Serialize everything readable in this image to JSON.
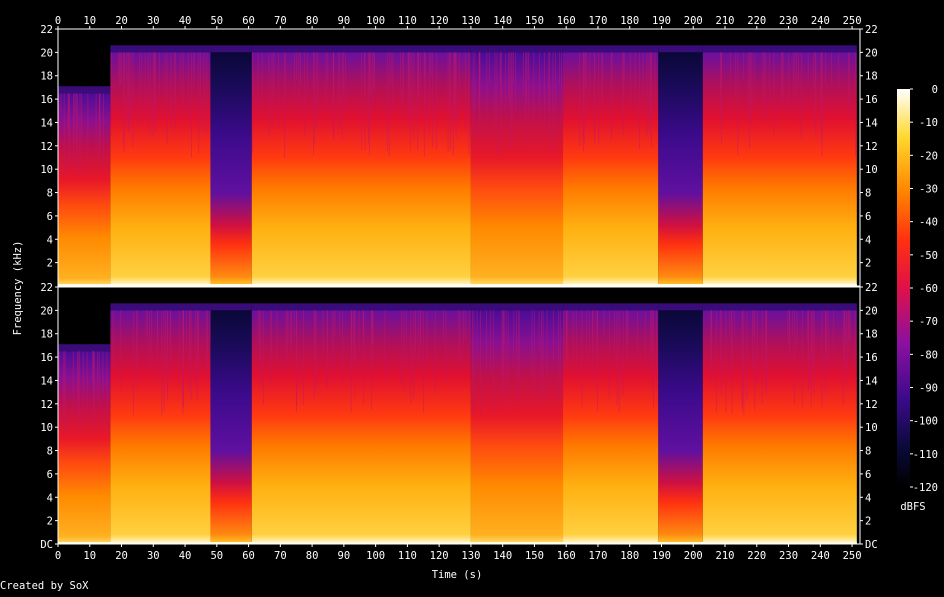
{
  "credit": "Created by SoX",
  "chart_data": {
    "type": "heatmap",
    "title": "",
    "xlabel": "Time (s)",
    "ylabel": "Frequency (kHz)",
    "x_ticks": [
      0,
      10,
      20,
      30,
      40,
      50,
      60,
      70,
      80,
      90,
      100,
      110,
      120,
      130,
      140,
      150,
      160,
      170,
      180,
      190,
      200,
      210,
      220,
      230,
      240,
      250
    ],
    "xlim": [
      0,
      252.5
    ],
    "channels": [
      {
        "y_ticks": [
          "2",
          "4",
          "6",
          "8",
          "10",
          "12",
          "14",
          "16",
          "18",
          "20",
          "22"
        ]
      },
      {
        "y_ticks": [
          "DC",
          "2",
          "4",
          "6",
          "8",
          "10",
          "12",
          "14",
          "16",
          "18",
          "20",
          "22"
        ]
      }
    ],
    "y_tick_values": [
      0,
      2,
      4,
      6,
      8,
      10,
      12,
      14,
      16,
      18,
      20,
      22
    ],
    "ylim": [
      0,
      22
    ],
    "colorbar": {
      "label": "dBFS",
      "ticks": [
        0,
        -10,
        -20,
        -30,
        -40,
        -50,
        -60,
        -70,
        -80,
        -90,
        -100,
        -110,
        -120
      ],
      "range": [
        -120,
        0
      ]
    },
    "segments": [
      {
        "start": 0,
        "end": 16.5,
        "cutoff_khz": 16.5,
        "level": "medium"
      },
      {
        "start": 16.5,
        "end": 48,
        "cutoff_khz": 20,
        "level": "loud"
      },
      {
        "start": 48,
        "end": 61,
        "cutoff_khz": 20,
        "level": "quiet"
      },
      {
        "start": 61,
        "end": 130,
        "cutoff_khz": 20,
        "level": "loud"
      },
      {
        "start": 130,
        "end": 159,
        "cutoff_khz": 20,
        "level": "medium"
      },
      {
        "start": 159,
        "end": 189,
        "cutoff_khz": 20,
        "level": "loud"
      },
      {
        "start": 189,
        "end": 203,
        "cutoff_khz": 20,
        "level": "quiet"
      },
      {
        "start": 203,
        "end": 251.5,
        "cutoff_khz": 20,
        "level": "loud"
      }
    ]
  }
}
